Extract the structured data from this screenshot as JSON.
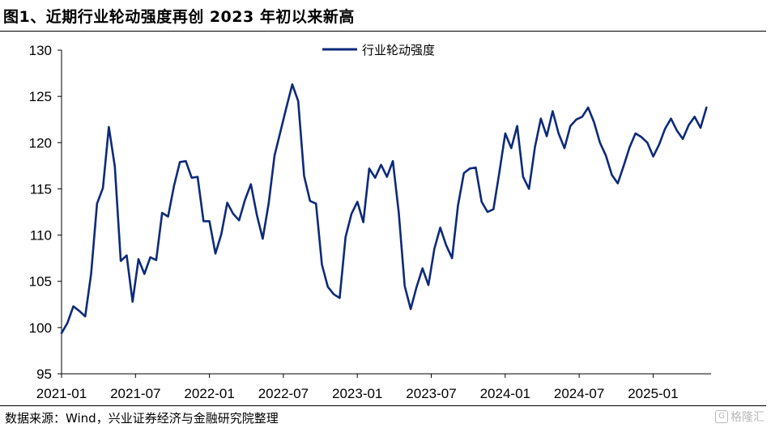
{
  "header": {
    "title": "图1、近期行业轮动强度再创 2023 年初以来新高"
  },
  "footer": {
    "source": "数据来源：Wind，兴业证券经济与金融研究院整理",
    "watermark": "格隆汇"
  },
  "chart_data": {
    "type": "line",
    "title": "图1、近期行业轮动强度再创 2023 年初以来新高",
    "xlabel": "",
    "ylabel": "",
    "ylim": [
      95,
      130
    ],
    "yticks": [
      95,
      100,
      105,
      110,
      115,
      120,
      125,
      130
    ],
    "xticks": [
      "2021-01",
      "2021-07",
      "2022-01",
      "2022-07",
      "2023-01",
      "2023-07",
      "2024-01",
      "2024-07",
      "2025-01"
    ],
    "xlim": [
      0,
      219
    ],
    "grid": false,
    "legend": "top-center",
    "colors": {
      "line": "#0c2a7a"
    },
    "series": [
      {
        "name": "行业轮动强度",
        "x": [
          0,
          2,
          4,
          6,
          8,
          10,
          12,
          14,
          16,
          18,
          20,
          22,
          24,
          26,
          28,
          30,
          32,
          34,
          36,
          38,
          40,
          42,
          44,
          46,
          48,
          50,
          52,
          54,
          56,
          58,
          60,
          62,
          64,
          66,
          68,
          70,
          72,
          74,
          76,
          78,
          80,
          82,
          84,
          86,
          88,
          90,
          92,
          94,
          96,
          98,
          100,
          102,
          104,
          106,
          108,
          110,
          112,
          114,
          116,
          118,
          120,
          122,
          124,
          126,
          128,
          130,
          132,
          134,
          136,
          138,
          140,
          142,
          144,
          146,
          148,
          150,
          152,
          154,
          156,
          158,
          160,
          162,
          164,
          166,
          168,
          170,
          172,
          174,
          176,
          178,
          180,
          182,
          184,
          186,
          188,
          190,
          192,
          194,
          196,
          198,
          200,
          202,
          204,
          206,
          208,
          210,
          212,
          214,
          216,
          218
        ],
        "values": [
          99.4,
          100.5,
          102.3,
          101.8,
          101.2,
          105.8,
          113.4,
          115.1,
          121.7,
          117.4,
          107.2,
          107.8,
          102.8,
          107.4,
          105.8,
          107.6,
          107.3,
          112.4,
          112.0,
          115.3,
          117.9,
          118.0,
          116.2,
          116.3,
          111.5,
          111.5,
          108.0,
          110.1,
          113.5,
          112.3,
          111.6,
          113.8,
          115.5,
          112.2,
          109.6,
          113.4,
          118.6,
          121.2,
          123.8,
          126.3,
          124.5,
          116.4,
          113.7,
          113.4,
          106.8,
          104.4,
          103.6,
          103.2,
          109.8,
          112.3,
          113.6,
          111.4,
          117.2,
          116.2,
          117.6,
          116.3,
          118.0,
          112.4,
          104.5,
          102.0,
          104.4,
          106.4,
          104.6,
          108.5,
          110.8,
          108.9,
          107.5,
          113.2,
          116.7,
          117.2,
          117.3,
          113.6,
          112.5,
          112.8,
          116.8,
          121.0,
          119.4,
          121.8,
          116.3,
          115.0,
          119.5,
          122.6,
          120.7,
          123.4,
          121.0,
          119.4,
          121.8,
          122.5,
          122.8,
          123.8,
          122.2,
          120.0,
          118.6,
          116.5,
          115.6,
          117.5,
          119.5,
          121.0,
          120.6,
          120.0,
          118.5,
          119.8,
          121.5,
          122.6,
          121.3,
          120.4,
          121.9,
          122.8,
          121.6,
          123.8
        ]
      }
    ]
  }
}
